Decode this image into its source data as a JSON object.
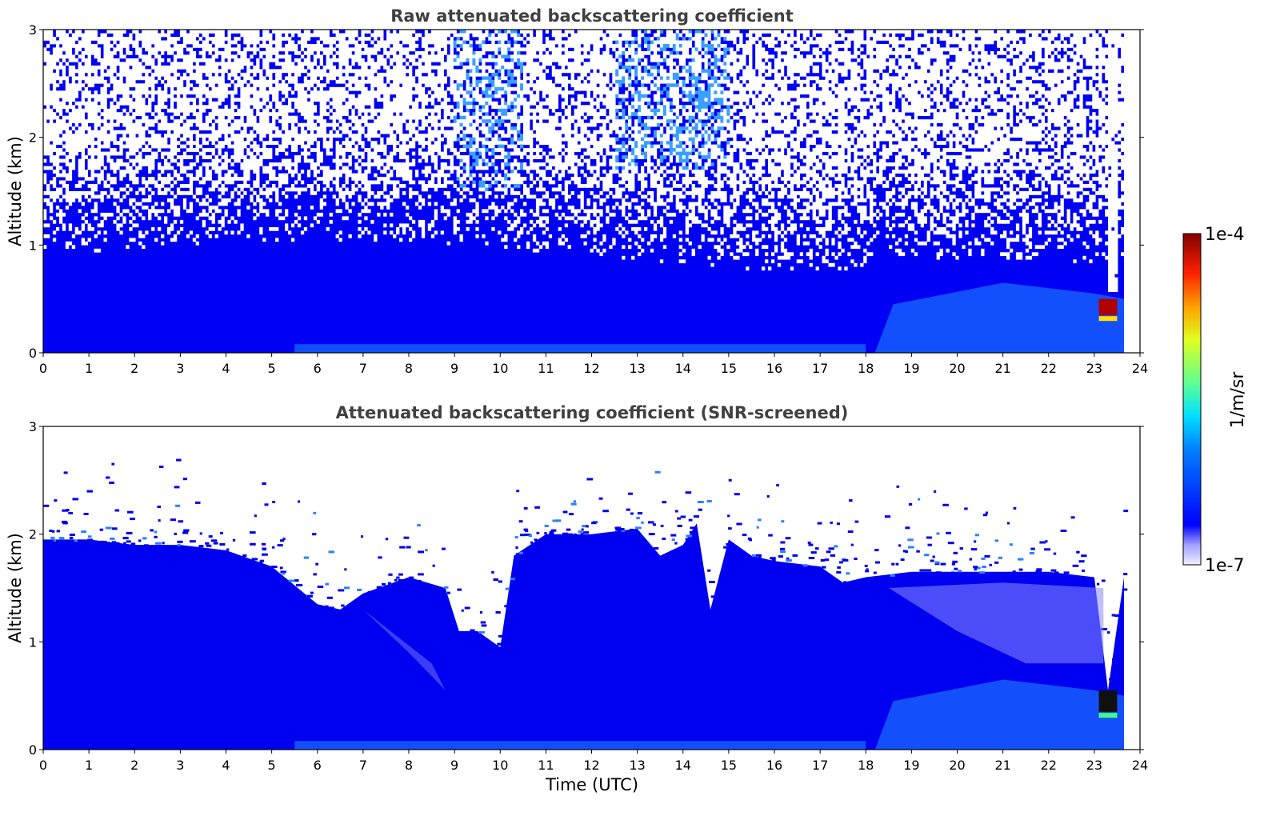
{
  "chart_data": [
    {
      "type": "heatmap",
      "title": "Raw attenuated backscattering coefficient",
      "xlabel": "",
      "ylabel": "Altitude (km)",
      "xlim": [
        0,
        24
      ],
      "ylim": [
        0,
        3
      ],
      "x_ticks": [
        "0",
        "1",
        "2",
        "3",
        "4",
        "5",
        "6",
        "7",
        "8",
        "9",
        "10",
        "11",
        "12",
        "13",
        "14",
        "15",
        "16",
        "17",
        "18",
        "19",
        "20",
        "21",
        "22",
        "23",
        "24"
      ],
      "y_ticks": [
        "0",
        "1",
        "2",
        "3"
      ],
      "data_extent_x": [
        0,
        23.65
      ],
      "colorscale": "jet",
      "features": [
        {
          "description": "dense aerosol/boundary layer",
          "x_range": [
            0,
            18
          ],
          "top_km": 1.0
        },
        {
          "description": "enhanced layer",
          "x_range": [
            18,
            23.4
          ],
          "top_km": 0.8
        },
        {
          "description": "strong backscatter (cloud/fog)",
          "x_range": [
            23.1,
            23.5
          ],
          "y_range_km": [
            0.35,
            0.5
          ]
        }
      ],
      "noise": "high above 1 km"
    },
    {
      "type": "heatmap",
      "title": "Attenuated backscattering coefficient (SNR-screened)",
      "xlabel": "Time (UTC)",
      "ylabel": "Altitude (km)",
      "xlim": [
        0,
        24
      ],
      "ylim": [
        0,
        3
      ],
      "x_ticks": [
        "0",
        "1",
        "2",
        "3",
        "4",
        "5",
        "6",
        "7",
        "8",
        "9",
        "10",
        "11",
        "12",
        "13",
        "14",
        "15",
        "16",
        "17",
        "18",
        "19",
        "20",
        "21",
        "22",
        "23",
        "24"
      ],
      "y_ticks": [
        "0",
        "1",
        "2",
        "3"
      ],
      "data_extent_x": [
        0,
        23.65
      ],
      "colorscale": "jet",
      "layer_top_km": [
        [
          0,
          1.95
        ],
        [
          1,
          1.95
        ],
        [
          2,
          1.9
        ],
        [
          3,
          1.9
        ],
        [
          4,
          1.85
        ],
        [
          5,
          1.7
        ],
        [
          6,
          1.35
        ],
        [
          6.5,
          1.3
        ],
        [
          7,
          1.45
        ],
        [
          8,
          1.6
        ],
        [
          8.8,
          1.5
        ],
        [
          9.1,
          1.1
        ],
        [
          9.5,
          1.1
        ],
        [
          10,
          0.95
        ],
        [
          10.3,
          1.8
        ],
        [
          11,
          2.0
        ],
        [
          12,
          2.0
        ],
        [
          13,
          2.05
        ],
        [
          13.5,
          1.8
        ],
        [
          14,
          1.9
        ],
        [
          14.3,
          2.1
        ],
        [
          14.6,
          1.3
        ],
        [
          15,
          1.95
        ],
        [
          15.5,
          1.8
        ],
        [
          16,
          1.75
        ],
        [
          17,
          1.7
        ],
        [
          17.5,
          1.55
        ],
        [
          18,
          1.6
        ],
        [
          19,
          1.65
        ],
        [
          20,
          1.65
        ],
        [
          21,
          1.65
        ],
        [
          22,
          1.65
        ],
        [
          23,
          1.6
        ],
        [
          23.3,
          0.55
        ],
        [
          23.65,
          1.6
        ]
      ],
      "strong_feature": {
        "description": "strong backscatter (cloud/fog)",
        "x_range": [
          23.1,
          23.5
        ],
        "y_range_km": [
          0.35,
          0.55
        ]
      }
    }
  ],
  "colorbar": {
    "label": "1/m/sr",
    "top": "1e-4",
    "bottom": "1e-7",
    "scale": "log",
    "range": [
      1e-07,
      0.0001
    ],
    "colors": {
      "white": "#ffffff",
      "blue": "#0000ff",
      "cyan": "#00ffff",
      "green": "#80ff80",
      "yellow": "#ffff00",
      "red": "#ff0000",
      "darkred": "#800000"
    }
  }
}
